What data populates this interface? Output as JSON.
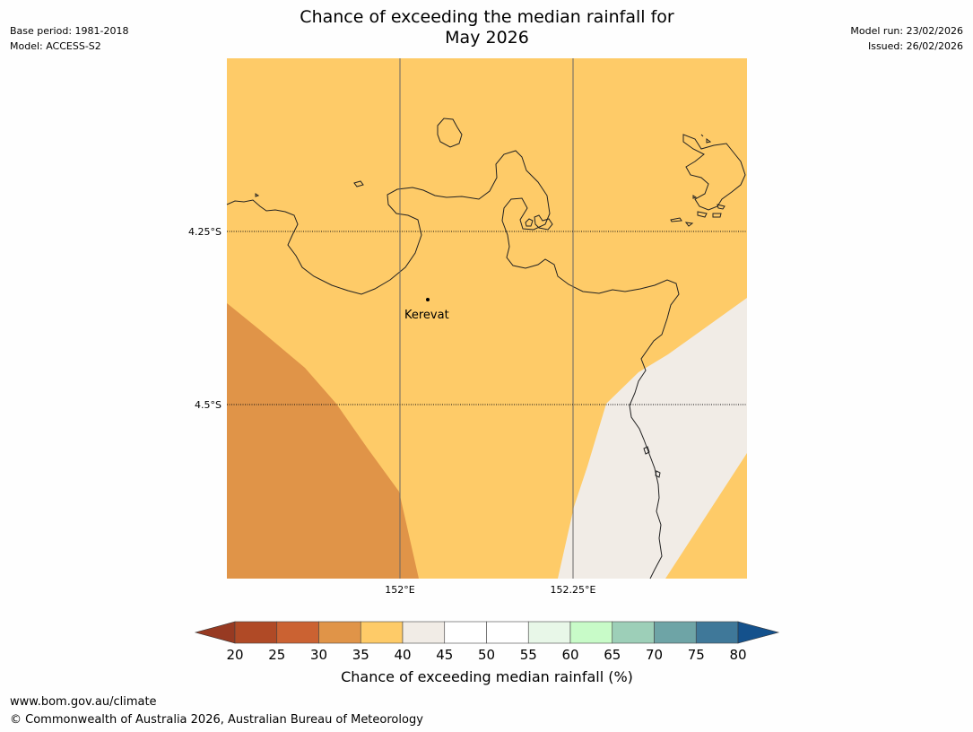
{
  "title_line1": "Chance of exceeding the median rainfall for",
  "title_line2": "May 2026",
  "meta_left": [
    "Base period: 1981-2018",
    "Model: ACCESS-S2"
  ],
  "meta_right": [
    "Model run: 23/02/2026",
    "Issued: 26/02/2026"
  ],
  "map": {
    "place_name": "Kerevat",
    "lat_labels": [
      "4.25°S",
      "4.5°S"
    ],
    "lon_labels": [
      "152°E",
      "152.25°E"
    ],
    "region_classes": [
      {
        "name": "30-35",
        "color": "#e09448"
      },
      {
        "name": "35-40",
        "color": "#fecb68"
      },
      {
        "name": "40-45",
        "color": "#f1ece6"
      }
    ]
  },
  "colorbar": {
    "label": "Chance of exceeding median rainfall (%)",
    "ticks": [
      "20",
      "25",
      "30",
      "35",
      "40",
      "45",
      "50",
      "55",
      "60",
      "65",
      "70",
      "75",
      "80"
    ],
    "colors": [
      "#b04a26",
      "#cb6232",
      "#e09448",
      "#fecb68",
      "#f1ece6",
      "#ffffff",
      "#ffffff",
      "#e8f7e8",
      "#c8fbc8",
      "#9dcfb8",
      "#6ea4a6",
      "#3f7899"
    ],
    "under_color": "#973a22",
    "over_color": "#14518c"
  },
  "footer": {
    "url": "www.bom.gov.au/climate",
    "copyright": "© Commonwealth of Australia 2026, Australian Bureau of Meteorology"
  }
}
